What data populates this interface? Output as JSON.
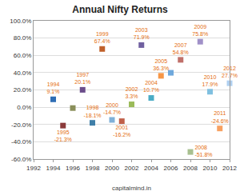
{
  "chart_data": {
    "type": "scatter",
    "title": "Annual Nifty Returns",
    "annotations": [
      "capitalmind.in"
    ],
    "x": [
      1994,
      1995,
      1996,
      1997,
      1998,
      1999,
      2000,
      2001,
      2002,
      2003,
      2004,
      2005,
      2006,
      2007,
      2008,
      2009,
      2010,
      2011,
      2012
    ],
    "values": [
      9.1,
      -21.3,
      -1.0,
      20.1,
      -18.1,
      67.4,
      -14.7,
      -16.2,
      3.3,
      71.9,
      10.7,
      36.3,
      39.8,
      54.8,
      -51.8,
      75.8,
      17.9,
      -24.6,
      27.7
    ],
    "value_labels": [
      "1994\n9.1%",
      "1995\n-21.3%",
      null,
      "1997\n20.1%",
      "1998\n-18.1%",
      "1999\n67.4%",
      "2000\n-14.7%",
      "2001\n-16.2%",
      "2002\n3.3%",
      "2003\n71.9%",
      "2004\n10.7%",
      "2005\n36.3%",
      null,
      "2007\n54.8%",
      "2008\n-51.8%",
      "2009\n75.8%",
      "2010\n17.9%",
      "2011\n-24.6%",
      "2012\n27.7%"
    ],
    "data_labels": true,
    "colors": [
      "#2f6eb5",
      "#8b3a3a",
      "#8a8f5a",
      "#6b4c8a",
      "#3f7fa8",
      "#c0602a",
      "#7fb0d8",
      "#c0604a",
      "#9bbb59",
      "#7060a0",
      "#4bacc6",
      "#f79646",
      "#6fa8dc",
      "#c0706a",
      "#a8c090",
      "#a090c8",
      "#80c0e0",
      "#f7a060",
      "#b0d0f0"
    ],
    "marker": "square",
    "xlim": [
      1992,
      2012
    ],
    "xticks": [
      1992,
      1994,
      1996,
      1998,
      2000,
      2002,
      2004,
      2006,
      2008,
      2010,
      2012
    ],
    "ylim": [
      -60,
      100
    ],
    "yticks": [
      {
        "value": -60,
        "label": "-60.0%"
      },
      {
        "value": -40,
        "label": "-40.0%"
      },
      {
        "value": -20,
        "label": "-20.0%"
      },
      {
        "value": 0,
        "label": "0.0%"
      },
      {
        "value": 20,
        "label": "20.0%"
      },
      {
        "value": 40,
        "label": "40.0%"
      },
      {
        "value": 60,
        "label": "60.0%"
      },
      {
        "value": 80,
        "label": "80.0%"
      },
      {
        "value": 100,
        "label": "100.0%"
      }
    ],
    "grid": true
  }
}
